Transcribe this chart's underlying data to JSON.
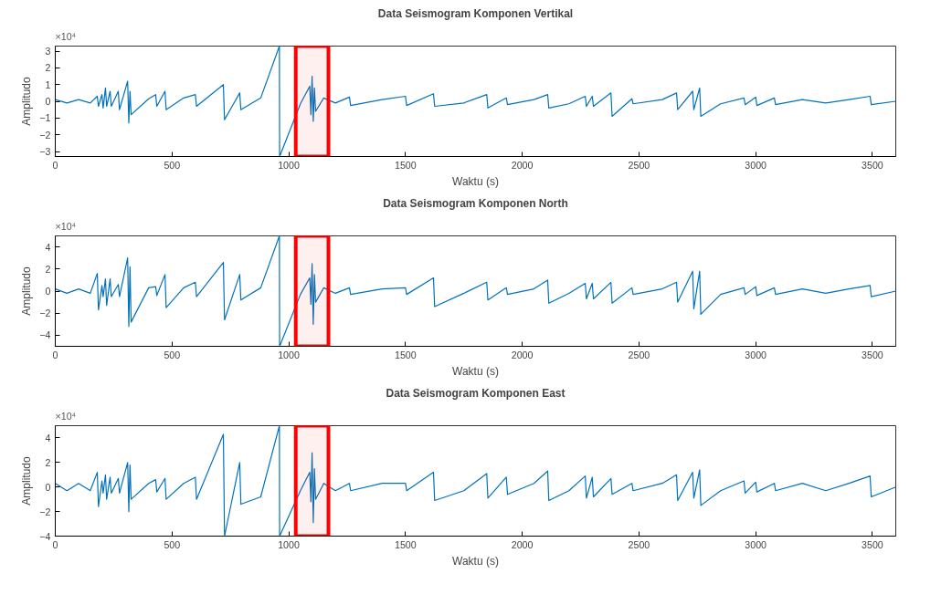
{
  "chart_data": [
    {
      "type": "line",
      "title": "Data Seismogram Komponen Vertikal",
      "xlabel": "Waktu (s)",
      "ylabel": "Amplitudo",
      "annotations": [
        "×10⁴"
      ],
      "grid": false,
      "x": [
        0,
        50,
        100,
        150,
        180,
        185,
        200,
        205,
        215,
        220,
        235,
        240,
        270,
        275,
        310,
        315,
        320,
        325,
        400,
        430,
        435,
        470,
        475,
        550,
        600,
        605,
        720,
        725,
        790,
        795,
        880,
        960,
        961,
        1050,
        1090,
        1095,
        1100,
        1105,
        1110,
        1115,
        1150,
        1200,
        1260,
        1265,
        1400,
        1500,
        1505,
        1620,
        1625,
        1750,
        1848,
        1853,
        1932,
        1937,
        2050,
        2109,
        2114,
        2200,
        2270,
        2275,
        2300,
        2305,
        2380,
        2385,
        2470,
        2475,
        2600,
        2661,
        2666,
        2730,
        2735,
        2760,
        2765,
        2850,
        2950,
        2955,
        3000,
        3005,
        3080,
        3085,
        3200,
        3300,
        3400,
        3490,
        3495,
        3600
      ],
      "series": [
        {
          "color": "#0072bd",
          "values": [
            0.1,
            -0.1,
            0.1,
            -0.1,
            0.3,
            -0.3,
            0.4,
            -0.4,
            0.8,
            -0.3,
            0.6,
            -0.3,
            0.6,
            -0.5,
            1.2,
            -1.3,
            0.6,
            -0.8,
            0.15,
            0.4,
            -0.3,
            0.6,
            -0.5,
            0.2,
            0.4,
            -0.3,
            1.0,
            -1.1,
            0.5,
            -0.5,
            0.2,
            3.3,
            -3.3,
            -0.15,
            0.9,
            -0.8,
            1.5,
            -1.2,
            0.8,
            -0.6,
            0.2,
            -0.1,
            0.25,
            -0.25,
            0.1,
            0.3,
            -0.25,
            0.45,
            -0.3,
            -0.1,
            0.4,
            -0.4,
            0.2,
            -0.2,
            0.1,
            0.4,
            -0.4,
            -0.15,
            0.3,
            -0.3,
            0.3,
            -0.3,
            0.5,
            -0.9,
            0.15,
            -0.15,
            0.1,
            0.5,
            -0.5,
            0.6,
            -0.5,
            0.8,
            -0.9,
            -0.15,
            0.2,
            -0.2,
            0.25,
            -0.25,
            0.2,
            -0.2,
            0.1,
            -0.1,
            0.1,
            0.3,
            -0.2,
            0
          ]
        }
      ],
      "xlim": [
        0,
        3600
      ],
      "ylim": [
        -3.3,
        3.3
      ],
      "xticks": [
        0,
        500,
        1000,
        1500,
        2000,
        2500,
        3000,
        3500
      ],
      "yticks": [
        -3,
        -2,
        -1,
        0,
        1,
        2,
        3
      ],
      "bands": [
        {
          "axis": "x",
          "from": 1030,
          "to": 1170,
          "color": "#ff0000"
        }
      ]
    },
    {
      "type": "line",
      "title": "Data Seismogram Komponen North",
      "xlabel": "Waktu (s)",
      "ylabel": "Amplitudo",
      "annotations": [
        "×10⁴"
      ],
      "grid": false,
      "x": [
        0,
        50,
        100,
        150,
        180,
        185,
        200,
        205,
        215,
        220,
        235,
        240,
        270,
        275,
        310,
        315,
        320,
        325,
        400,
        430,
        435,
        470,
        475,
        550,
        600,
        605,
        720,
        725,
        790,
        795,
        880,
        960,
        961,
        1050,
        1090,
        1095,
        1100,
        1105,
        1110,
        1115,
        1150,
        1200,
        1260,
        1265,
        1400,
        1500,
        1505,
        1620,
        1625,
        1750,
        1848,
        1853,
        1932,
        1937,
        2050,
        2109,
        2114,
        2200,
        2270,
        2275,
        2300,
        2305,
        2380,
        2385,
        2470,
        2475,
        2600,
        2661,
        2666,
        2730,
        2735,
        2760,
        2765,
        2850,
        2950,
        2955,
        3000,
        3005,
        3080,
        3085,
        3200,
        3300,
        3400,
        3490,
        3495,
        3600
      ],
      "series": [
        {
          "color": "#0072bd",
          "values": [
            0.2,
            -0.2,
            0.2,
            -0.2,
            1.6,
            -1.7,
            0.5,
            -0.5,
            1.1,
            -1.3,
            1.1,
            -0.5,
            0.6,
            -0.5,
            3.0,
            -3.2,
            2.2,
            -2.8,
            0.3,
            0.4,
            -0.4,
            1.5,
            -1.5,
            0.3,
            0.8,
            -0.5,
            2.6,
            -2.6,
            1.5,
            -0.8,
            0.3,
            5,
            -5,
            -0.3,
            1.2,
            -1.2,
            2.5,
            -3.0,
            1.5,
            -1.0,
            0.3,
            -0.2,
            0.3,
            -0.3,
            0.2,
            0.3,
            -0.3,
            1.2,
            -1.4,
            -0.2,
            0.8,
            -0.8,
            0.3,
            -0.3,
            0.2,
            1.0,
            -1.1,
            -0.2,
            0.7,
            -0.7,
            0.7,
            -0.7,
            0.8,
            -1.1,
            0.3,
            -0.3,
            0.2,
            0.8,
            -1.0,
            1.8,
            -1.6,
            1.8,
            -2.1,
            -0.3,
            0.3,
            -0.3,
            0.4,
            -0.4,
            0.3,
            -0.3,
            0.2,
            -0.2,
            0.2,
            0.5,
            -0.5,
            0
          ]
        }
      ],
      "xlim": [
        0,
        3600
      ],
      "ylim": [
        -5,
        5
      ],
      "xticks": [
        0,
        500,
        1000,
        1500,
        2000,
        2500,
        3000,
        3500
      ],
      "yticks": [
        -4,
        -2,
        0,
        2,
        4
      ],
      "bands": [
        {
          "axis": "x",
          "from": 1030,
          "to": 1170,
          "color": "#ff0000"
        }
      ]
    },
    {
      "type": "line",
      "title": "Data Seismogram Komponen East",
      "xlabel": "Waktu (s)",
      "ylabel": "Amplitudo",
      "annotations": [
        "×10⁴"
      ],
      "grid": false,
      "x": [
        0,
        50,
        100,
        150,
        180,
        185,
        200,
        205,
        215,
        220,
        235,
        240,
        270,
        275,
        310,
        315,
        320,
        325,
        400,
        430,
        435,
        470,
        475,
        550,
        600,
        605,
        720,
        725,
        790,
        795,
        880,
        960,
        961,
        1050,
        1090,
        1095,
        1100,
        1105,
        1110,
        1115,
        1150,
        1200,
        1260,
        1265,
        1400,
        1500,
        1505,
        1620,
        1625,
        1750,
        1848,
        1853,
        1932,
        1937,
        2050,
        2109,
        2114,
        2200,
        2270,
        2275,
        2300,
        2305,
        2380,
        2385,
        2470,
        2475,
        2600,
        2661,
        2666,
        2730,
        2735,
        2760,
        2765,
        2850,
        2950,
        2955,
        3000,
        3005,
        3080,
        3085,
        3200,
        3300,
        3400,
        3490,
        3495,
        3600
      ],
      "series": [
        {
          "color": "#0072bd",
          "values": [
            0.3,
            -0.3,
            0.3,
            -0.3,
            1.2,
            -1.6,
            0.5,
            -0.5,
            1.0,
            -1.0,
            0.8,
            -0.5,
            0.7,
            -0.5,
            2.0,
            -2.0,
            1.8,
            -1.0,
            0.3,
            0.6,
            -0.4,
            0.7,
            -1.0,
            0.3,
            0.8,
            -1.0,
            4.3,
            -4.0,
            2.0,
            -1.4,
            -0.8,
            5,
            -4,
            -0.3,
            1.2,
            -1.2,
            2.8,
            -2.9,
            1.5,
            -1.0,
            0.3,
            -0.3,
            0.3,
            -0.3,
            0.3,
            0.3,
            -0.3,
            1.2,
            -1.1,
            -0.3,
            1.1,
            -0.9,
            0.8,
            -0.6,
            0.3,
            1.3,
            -1.1,
            -0.3,
            0.9,
            -0.9,
            0.8,
            -0.8,
            0.7,
            -0.6,
            0.3,
            -0.3,
            0.3,
            1.0,
            -1.1,
            1.2,
            -0.9,
            1.4,
            -1.5,
            -0.3,
            0.5,
            -0.5,
            0.4,
            -0.4,
            0.3,
            -0.3,
            0.3,
            -0.3,
            0.3,
            0.9,
            -0.8,
            0
          ]
        }
      ],
      "xlim": [
        0,
        3600
      ],
      "ylim": [
        -4,
        5
      ],
      "xticks": [
        0,
        500,
        1000,
        1500,
        2000,
        2500,
        3000,
        3500
      ],
      "yticks": [
        -4,
        -2,
        0,
        2,
        4
      ],
      "bands": [
        {
          "axis": "x",
          "from": 1030,
          "to": 1170,
          "color": "#ff0000"
        }
      ]
    }
  ]
}
